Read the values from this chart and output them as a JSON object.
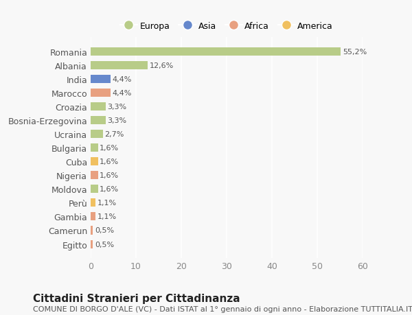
{
  "categories": [
    "Egitto",
    "Camerun",
    "Gambia",
    "Perù",
    "Moldova",
    "Nigeria",
    "Cuba",
    "Bulgaria",
    "Ucraina",
    "Bosnia-Erzegovina",
    "Croazia",
    "Marocco",
    "India",
    "Albania",
    "Romania"
  ],
  "values": [
    0.5,
    0.5,
    1.1,
    1.1,
    1.6,
    1.6,
    1.6,
    1.6,
    2.7,
    3.3,
    3.3,
    4.4,
    4.4,
    12.6,
    55.2
  ],
  "colors": [
    "#e8a080",
    "#e8a080",
    "#e8a080",
    "#f0c060",
    "#b8cc88",
    "#e8a080",
    "#f0c060",
    "#b8cc88",
    "#b8cc88",
    "#b8cc88",
    "#b8cc88",
    "#e8a080",
    "#6688cc",
    "#b8cc88",
    "#b8cc88"
  ],
  "labels": [
    "0,5%",
    "0,5%",
    "1,1%",
    "1,1%",
    "1,6%",
    "1,6%",
    "1,6%",
    "1,6%",
    "2,7%",
    "3,3%",
    "3,3%",
    "4,4%",
    "4,4%",
    "12,6%",
    "55,2%"
  ],
  "legend_labels": [
    "Europa",
    "Asia",
    "Africa",
    "America"
  ],
  "legend_colors": [
    "#b8cc88",
    "#6688cc",
    "#e8a080",
    "#f0c060"
  ],
  "title": "Cittadini Stranieri per Cittadinanza",
  "subtitle": "COMUNE DI BORGO D'ALE (VC) - Dati ISTAT al 1° gennaio di ogni anno - Elaborazione TUTTITALIA.IT",
  "xlim": [
    0,
    60
  ],
  "xticks": [
    0,
    10,
    20,
    30,
    40,
    50,
    60
  ],
  "background_color": "#f8f8f8",
  "bar_height": 0.6,
  "title_fontsize": 11,
  "subtitle_fontsize": 8,
  "label_fontsize": 8,
  "tick_fontsize": 9
}
